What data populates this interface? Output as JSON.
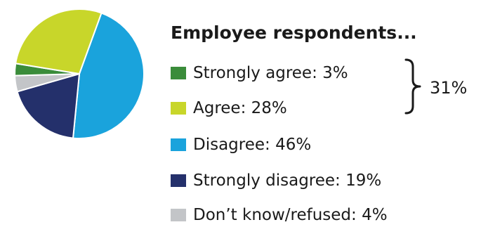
{
  "chart_data": {
    "type": "pie",
    "title": "Employee respondents...",
    "slices": [
      {
        "label": "Strongly agree",
        "value": 3,
        "color": "#3a8c3a"
      },
      {
        "label": "Agree",
        "value": 28,
        "color": "#c8d62a"
      },
      {
        "label": "Disagree",
        "value": 46,
        "color": "#1aa3dc"
      },
      {
        "label": "Strongly disagree",
        "value": 19,
        "color": "#24306b"
      },
      {
        "label": "Don’t know/refused",
        "value": 4,
        "color": "#c3c5c8"
      }
    ],
    "legend": [
      "Strongly agree: 3%",
      "Agree: 28%",
      "Disagree: 46%",
      "Strongly disagree: 19%",
      "Don’t know/refused: 4%"
    ],
    "annotation": {
      "label": "31%",
      "groups": [
        "Strongly agree",
        "Agree"
      ]
    }
  }
}
